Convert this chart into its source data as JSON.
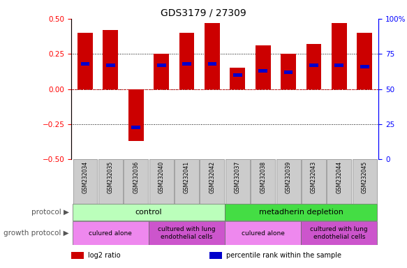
{
  "title": "GDS3179 / 27309",
  "samples": [
    "GSM232034",
    "GSM232035",
    "GSM232036",
    "GSM232040",
    "GSM232041",
    "GSM232042",
    "GSM232037",
    "GSM232038",
    "GSM232039",
    "GSM232043",
    "GSM232044",
    "GSM232045"
  ],
  "log2_ratio": [
    0.4,
    0.42,
    -0.37,
    0.25,
    0.4,
    0.47,
    0.15,
    0.31,
    0.25,
    0.32,
    0.47,
    0.4
  ],
  "percentile_rank": [
    0.18,
    0.17,
    -0.27,
    0.17,
    0.18,
    0.18,
    0.1,
    0.13,
    0.12,
    0.17,
    0.17,
    0.16
  ],
  "ylim": [
    -0.5,
    0.5
  ],
  "yticks_left": [
    -0.5,
    -0.25,
    0.0,
    0.25,
    0.5
  ],
  "yticks_right": [
    0,
    25,
    50,
    75,
    100
  ],
  "bar_color": "#cc0000",
  "percentile_color": "#0000cc",
  "dotted_line_color": "#000000",
  "zero_line_color": "#cc0000",
  "protocol_groups": [
    {
      "label": "control",
      "start": 0,
      "end": 6,
      "color": "#bbffbb"
    },
    {
      "label": "metadherin depletion",
      "start": 6,
      "end": 12,
      "color": "#44dd44"
    }
  ],
  "growth_groups": [
    {
      "label": "culured alone",
      "start": 0,
      "end": 3,
      "color": "#ee88ee"
    },
    {
      "label": "cultured with lung\nendothelial cells",
      "start": 3,
      "end": 6,
      "color": "#cc55cc"
    },
    {
      "label": "culured alone",
      "start": 6,
      "end": 9,
      "color": "#ee88ee"
    },
    {
      "label": "cultured with lung\nendothelial cells",
      "start": 9,
      "end": 12,
      "color": "#cc55cc"
    }
  ],
  "legend_items": [
    {
      "label": "log2 ratio",
      "color": "#cc0000"
    },
    {
      "label": "percentile rank within the sample",
      "color": "#0000cc"
    }
  ],
  "sample_box_color": "#cccccc",
  "protocol_label_left": "protocol",
  "growth_label_left": "growth protocol"
}
